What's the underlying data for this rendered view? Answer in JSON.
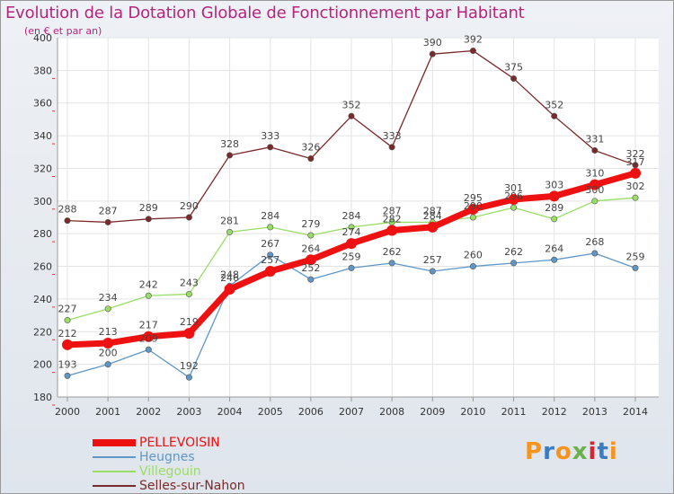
{
  "title": "Evolution de la Dotation Globale de Fonctionnement par Habitant",
  "subtitle": "(en € et par an)",
  "logo": {
    "text": "Proxiti",
    "colors": [
      "#f7941d",
      "#3a7cc1",
      "#f7941d",
      "#6ab04c",
      "#d9232d",
      "#3a7cc1",
      "#f7941d"
    ]
  },
  "chart_data": {
    "type": "line",
    "x": [
      2000,
      2001,
      2002,
      2003,
      2004,
      2005,
      2006,
      2007,
      2008,
      2009,
      2010,
      2011,
      2012,
      2013,
      2014
    ],
    "ylim": [
      180,
      400
    ],
    "yticks": [
      180,
      200,
      220,
      240,
      260,
      280,
      300,
      320,
      340,
      360,
      380,
      400
    ],
    "grid": true,
    "legend_position": "bottom-left",
    "series": [
      {
        "name": "PELLEVOISIN",
        "color": "#ee1111",
        "values": [
          212,
          213,
          217,
          219,
          246,
          257,
          264,
          274,
          282,
          284,
          295,
          301,
          303,
          310,
          317
        ]
      },
      {
        "name": "Heugnes",
        "color": "#5f96c6",
        "values": [
          193,
          200,
          209,
          192,
          248,
          267,
          252,
          259,
          262,
          257,
          260,
          262,
          264,
          268,
          259
        ]
      },
      {
        "name": "Villegouin",
        "color": "#99dd66",
        "values": [
          227,
          234,
          242,
          243,
          281,
          284,
          279,
          284,
          287,
          287,
          290,
          296,
          289,
          300,
          302
        ]
      },
      {
        "name": "Selles-sur-Nahon",
        "color": "#7a2a2a",
        "values": [
          288,
          287,
          289,
          290,
          328,
          333,
          326,
          352,
          333,
          390,
          392,
          375,
          352,
          331,
          322
        ]
      }
    ]
  }
}
